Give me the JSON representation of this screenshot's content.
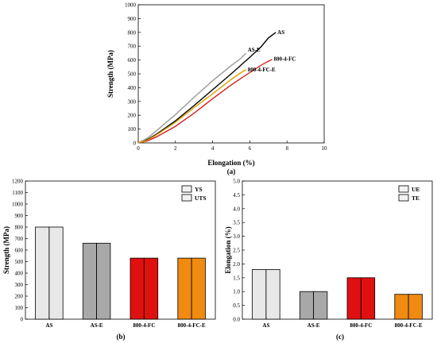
{
  "chart_data": [
    {
      "type": "line",
      "panel_label": "(a)",
      "xlabel": "Elongation (%)",
      "ylabel": "Strength (MPa)",
      "xlim": [
        0,
        10
      ],
      "ylim": [
        0,
        1000
      ],
      "x_ticks": [
        "0",
        "2",
        "4",
        "6",
        "8",
        "10"
      ],
      "y_ticks": [
        "0",
        "100",
        "200",
        "300",
        "400",
        "500",
        "600",
        "700",
        "800",
        "900",
        "1000"
      ],
      "grid": false,
      "series": [
        {
          "name": "AS",
          "color": "#000000",
          "points": [
            [
              0,
              0
            ],
            [
              0.5,
              25
            ],
            [
              1,
              65
            ],
            [
              2,
              160
            ],
            [
              3,
              270
            ],
            [
              4,
              385
            ],
            [
              5,
              500
            ],
            [
              6,
              620
            ],
            [
              6.6,
              695
            ],
            [
              7,
              760
            ],
            [
              7.4,
              800
            ]
          ]
        },
        {
          "name": "AS-E",
          "color": "#9a9a9a",
          "points": [
            [
              0,
              0
            ],
            [
              0.5,
              35
            ],
            [
              1,
              90
            ],
            [
              2,
              205
            ],
            [
              3,
              330
            ],
            [
              4,
              450
            ],
            [
              5,
              560
            ],
            [
              5.5,
              610
            ],
            [
              5.8,
              650
            ]
          ]
        },
        {
          "name": "800-4-FC",
          "color": "#d42020",
          "points": [
            [
              0,
              0
            ],
            [
              0.5,
              15
            ],
            [
              1,
              45
            ],
            [
              2,
              120
            ],
            [
              3,
              215
            ],
            [
              4,
              320
            ],
            [
              5,
              420
            ],
            [
              6,
              510
            ],
            [
              6.7,
              570
            ],
            [
              7.2,
              605
            ]
          ]
        },
        {
          "name": "800-4-FC-E",
          "color": "#d9a000",
          "points": [
            [
              0,
              0
            ],
            [
              0.5,
              20
            ],
            [
              1,
              60
            ],
            [
              2,
              150
            ],
            [
              3,
              255
            ],
            [
              4,
              355
            ],
            [
              5,
              460
            ],
            [
              5.6,
              515
            ],
            [
              5.8,
              530
            ]
          ]
        }
      ]
    },
    {
      "type": "bar",
      "panel_label": "(b)",
      "ylabel": "Strength (MPa)",
      "ylim": [
        0,
        1200
      ],
      "y_ticks": [
        "0",
        "100",
        "200",
        "300",
        "400",
        "500",
        "600",
        "700",
        "800",
        "900",
        "1000",
        "1100",
        "1200"
      ],
      "categories": [
        "AS",
        "AS-E",
        "800-4-FC",
        "800-4-FC-E"
      ],
      "colors": [
        "#e8e8e8",
        "#a8a8a8",
        "#e01010",
        "#f08a10"
      ],
      "legend": {
        "position": "top-right",
        "entries": [
          "YS",
          "UTS"
        ]
      },
      "series": [
        {
          "name": "YS",
          "values": [
            800,
            660,
            530,
            530
          ]
        },
        {
          "name": "UTS",
          "values": [
            800,
            660,
            530,
            530
          ]
        }
      ]
    },
    {
      "type": "bar",
      "panel_label": "(c)",
      "ylabel": "Elongation (%)",
      "ylim": [
        0,
        5.0
      ],
      "y_ticks": [
        "0.0",
        "0.5",
        "1.0",
        "1.5",
        "2.0",
        "2.5",
        "3.0",
        "3.5",
        "4.0",
        "4.5",
        "5.0"
      ],
      "categories": [
        "AS",
        "AS-E",
        "800-4-FC",
        "800-4-FC-E"
      ],
      "colors": [
        "#e8e8e8",
        "#a8a8a8",
        "#e01010",
        "#f08a10"
      ],
      "legend": {
        "position": "top-right",
        "entries": [
          "UE",
          "TE"
        ]
      },
      "series": [
        {
          "name": "UE",
          "values": [
            1.8,
            1.0,
            1.5,
            0.9
          ]
        },
        {
          "name": "TE",
          "values": [
            1.8,
            1.0,
            1.5,
            0.9
          ]
        }
      ]
    }
  ]
}
